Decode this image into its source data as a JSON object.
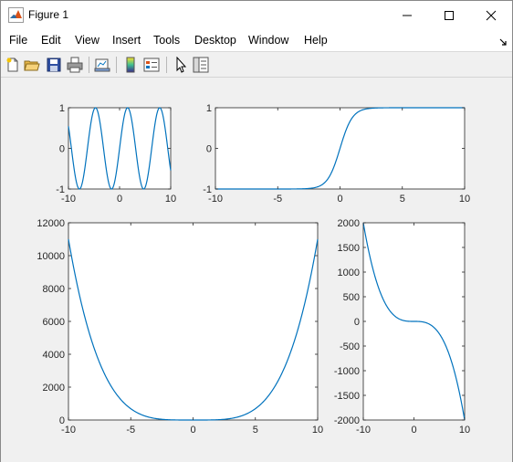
{
  "window": {
    "title": "Figure 1",
    "controls": {
      "minimize": "minimize",
      "maximize": "maximize",
      "close": "close"
    }
  },
  "menu": {
    "items": [
      "File",
      "Edit",
      "View",
      "Insert",
      "Tools",
      "Desktop",
      "Window",
      "Help"
    ]
  },
  "toolbar": {
    "buttons": [
      "new-figure",
      "open-file",
      "save",
      "print",
      "link-plot",
      "insert-colorbar",
      "insert-legend",
      "edit-plot",
      "property-inspector"
    ]
  },
  "colors": {
    "line": "#0072bd",
    "axes_bg": "#ffffff",
    "figure_bg": "#f0f0f0",
    "axis": "#262626"
  },
  "chart_data": [
    {
      "id": "sin",
      "type": "line",
      "function": "sin(x)",
      "xlim": [
        -10,
        10
      ],
      "ylim": [
        -1,
        1
      ],
      "xticks": [
        -10,
        0,
        10
      ],
      "yticks": [
        -1,
        0,
        1
      ],
      "xticklabels": [
        "-10",
        "0",
        "10"
      ],
      "yticklabels": [
        "-1",
        "0",
        "1"
      ]
    },
    {
      "id": "tanh",
      "type": "line",
      "function": "tanh(x)",
      "xlim": [
        -10,
        10
      ],
      "ylim": [
        -1,
        1
      ],
      "xticks": [
        -10,
        -5,
        0,
        5,
        10
      ],
      "yticks": [
        -1,
        0,
        1
      ],
      "xticklabels": [
        "-10",
        "-5",
        "0",
        "5",
        "10"
      ],
      "yticklabels": [
        "-1",
        "0",
        "1"
      ]
    },
    {
      "id": "x4",
      "type": "line",
      "function": "1.1*x^4",
      "xlim": [
        -10,
        10
      ],
      "ylim": [
        0,
        12000
      ],
      "xticks": [
        -10,
        -5,
        0,
        5,
        10
      ],
      "yticks": [
        0,
        2000,
        4000,
        6000,
        8000,
        10000,
        12000
      ],
      "xticklabels": [
        "-10",
        "-5",
        "0",
        "5",
        "10"
      ],
      "yticklabels": [
        "0",
        "2000",
        "4000",
        "6000",
        "8000",
        "10000",
        "12000"
      ]
    },
    {
      "id": "negx3",
      "type": "line",
      "function": "-2*x^3",
      "xlim": [
        -10,
        10
      ],
      "ylim": [
        -2000,
        2000
      ],
      "xticks": [
        -10,
        0,
        10
      ],
      "yticks": [
        -2000,
        -1500,
        -1000,
        -500,
        0,
        500,
        1000,
        1500,
        2000
      ],
      "xticklabels": [
        "-10",
        "0",
        "10"
      ],
      "yticklabels": [
        "-2000",
        "-1500",
        "-1000",
        "-500",
        "0",
        "500",
        "1000",
        "1500",
        "2000"
      ]
    }
  ]
}
